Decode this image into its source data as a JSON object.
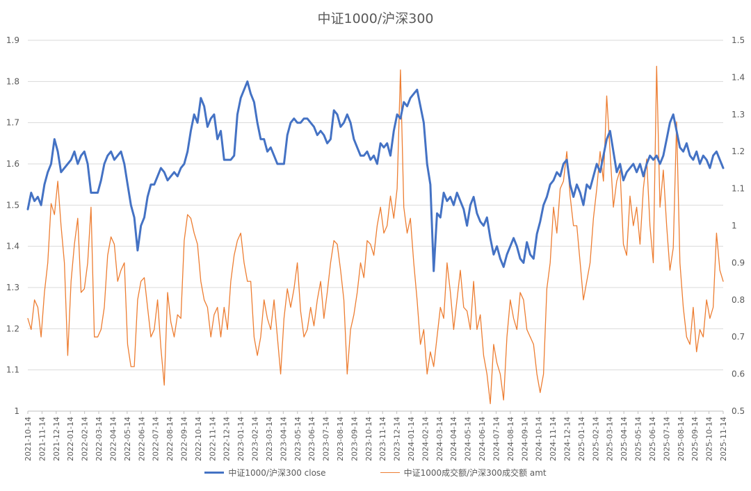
{
  "chart_data": {
    "type": "line",
    "title": "中证1000/沪深300",
    "x_ticks": [
      "2021-10-14",
      "2021-11-14",
      "2021-12-14",
      "2022-01-14",
      "2022-02-14",
      "2022-03-14",
      "2022-04-14",
      "2022-05-14",
      "2022-06-14",
      "2022-07-14",
      "2022-08-14",
      "2022-09-14",
      "2022-10-14",
      "2022-11-14",
      "2022-12-14",
      "2023-01-14",
      "2023-02-14",
      "2023-03-14",
      "2023-04-14",
      "2023-05-14",
      "2023-06-14",
      "2023-07-14",
      "2023-08-14",
      "2023-09-14",
      "2023-10-14",
      "2023-11-14",
      "2023-12-14",
      "2024-01-14",
      "2024-02-14",
      "2024-03-14",
      "2024-04-14",
      "2024-05-14",
      "2024-06-14",
      "2024-07-14",
      "2024-08-14",
      "2024-09-14",
      "2024-10-14",
      "2024-11-14",
      "2024-12-14",
      "2025-01-14",
      "2025-02-14",
      "2025-03-14",
      "2025-04-14",
      "2025-05-14",
      "2025-06-14",
      "2025-07-14",
      "2025-08-14",
      "2025-09-14",
      "2025-10-14",
      "2025-11-14"
    ],
    "y_left": {
      "min": 1.0,
      "max": 1.9,
      "step": 0.1,
      "ticks": [
        "1",
        "1.1",
        "1.2",
        "1.3",
        "1.4",
        "1.5",
        "1.6",
        "1.7",
        "1.8",
        "1.9"
      ]
    },
    "y_right": {
      "min": 0.5,
      "max": 1.5,
      "step": 0.1,
      "ticks": [
        "0.5",
        "0.6",
        "0.7",
        "0.8",
        "0.9",
        "1",
        "1.1",
        "1.2",
        "1.3",
        "1.4",
        "1.5"
      ]
    },
    "grid": true,
    "legend_position": "bottom",
    "series": [
      {
        "name": "中证1000/沪深300 close",
        "axis": "left",
        "color": "#4472C4",
        "values": [
          1.49,
          1.53,
          1.51,
          1.52,
          1.5,
          1.55,
          1.58,
          1.6,
          1.66,
          1.63,
          1.58,
          1.59,
          1.6,
          1.61,
          1.63,
          1.6,
          1.62,
          1.63,
          1.6,
          1.53,
          1.53,
          1.53,
          1.56,
          1.6,
          1.62,
          1.63,
          1.61,
          1.62,
          1.63,
          1.6,
          1.55,
          1.5,
          1.47,
          1.39,
          1.45,
          1.47,
          1.52,
          1.55,
          1.55,
          1.57,
          1.59,
          1.58,
          1.56,
          1.57,
          1.58,
          1.57,
          1.59,
          1.6,
          1.63,
          1.68,
          1.72,
          1.7,
          1.76,
          1.74,
          1.69,
          1.71,
          1.72,
          1.66,
          1.68,
          1.61,
          1.61,
          1.61,
          1.62,
          1.72,
          1.76,
          1.78,
          1.8,
          1.77,
          1.75,
          1.7,
          1.66,
          1.66,
          1.63,
          1.64,
          1.62,
          1.6,
          1.6,
          1.6,
          1.67,
          1.7,
          1.71,
          1.7,
          1.7,
          1.71,
          1.71,
          1.7,
          1.69,
          1.67,
          1.68,
          1.67,
          1.65,
          1.66,
          1.73,
          1.72,
          1.69,
          1.7,
          1.72,
          1.7,
          1.66,
          1.64,
          1.62,
          1.62,
          1.63,
          1.61,
          1.62,
          1.6,
          1.65,
          1.64,
          1.65,
          1.62,
          1.68,
          1.72,
          1.71,
          1.75,
          1.74,
          1.76,
          1.77,
          1.78,
          1.74,
          1.7,
          1.6,
          1.55,
          1.34,
          1.48,
          1.47,
          1.53,
          1.51,
          1.52,
          1.5,
          1.53,
          1.51,
          1.49,
          1.45,
          1.5,
          1.52,
          1.48,
          1.46,
          1.45,
          1.47,
          1.42,
          1.38,
          1.4,
          1.37,
          1.35,
          1.38,
          1.4,
          1.42,
          1.4,
          1.37,
          1.36,
          1.41,
          1.38,
          1.37,
          1.43,
          1.46,
          1.5,
          1.52,
          1.55,
          1.56,
          1.58,
          1.57,
          1.6,
          1.61,
          1.55,
          1.52,
          1.55,
          1.53,
          1.5,
          1.55,
          1.54,
          1.57,
          1.6,
          1.58,
          1.62,
          1.66,
          1.68,
          1.63,
          1.58,
          1.6,
          1.56,
          1.58,
          1.59,
          1.6,
          1.58,
          1.6,
          1.57,
          1.6,
          1.62,
          1.61,
          1.62,
          1.6,
          1.62,
          1.66,
          1.7,
          1.72,
          1.68,
          1.64,
          1.63,
          1.65,
          1.62,
          1.61,
          1.63,
          1.6,
          1.62,
          1.61,
          1.59,
          1.62,
          1.63,
          1.61,
          1.59
        ]
      },
      {
        "name": "中证1000成交额/沪深300成交额 amt",
        "axis": "right",
        "color": "#ED7D31",
        "values": [
          0.75,
          0.72,
          0.8,
          0.78,
          0.7,
          0.82,
          0.9,
          1.06,
          1.03,
          1.12,
          1.0,
          0.9,
          0.65,
          0.85,
          0.95,
          1.02,
          0.82,
          0.83,
          0.9,
          1.05,
          0.7,
          0.7,
          0.72,
          0.78,
          0.92,
          0.97,
          0.95,
          0.85,
          0.88,
          0.9,
          0.68,
          0.62,
          0.62,
          0.8,
          0.85,
          0.86,
          0.78,
          0.7,
          0.72,
          0.8,
          0.67,
          0.57,
          0.82,
          0.74,
          0.7,
          0.76,
          0.75,
          0.96,
          1.03,
          1.02,
          0.98,
          0.95,
          0.85,
          0.8,
          0.78,
          0.7,
          0.76,
          0.78,
          0.7,
          0.78,
          0.72,
          0.85,
          0.92,
          0.96,
          0.98,
          0.9,
          0.85,
          0.85,
          0.7,
          0.65,
          0.7,
          0.8,
          0.75,
          0.72,
          0.8,
          0.7,
          0.6,
          0.75,
          0.83,
          0.78,
          0.83,
          0.9,
          0.77,
          0.7,
          0.72,
          0.78,
          0.73,
          0.8,
          0.85,
          0.75,
          0.82,
          0.9,
          0.96,
          0.95,
          0.88,
          0.8,
          0.6,
          0.72,
          0.76,
          0.82,
          0.9,
          0.86,
          0.96,
          0.95,
          0.92,
          1.0,
          1.05,
          0.98,
          1.0,
          1.08,
          1.02,
          1.1,
          1.42,
          1.05,
          0.98,
          1.02,
          0.9,
          0.8,
          0.68,
          0.72,
          0.6,
          0.66,
          0.62,
          0.7,
          0.78,
          0.75,
          0.9,
          0.82,
          0.72,
          0.8,
          0.88,
          0.78,
          0.77,
          0.72,
          0.85,
          0.72,
          0.76,
          0.65,
          0.6,
          0.52,
          0.68,
          0.63,
          0.6,
          0.53,
          0.7,
          0.8,
          0.75,
          0.72,
          0.82,
          0.8,
          0.72,
          0.7,
          0.68,
          0.6,
          0.55,
          0.6,
          0.83,
          0.9,
          1.05,
          0.98,
          1.1,
          1.12,
          1.2,
          1.08,
          1.0,
          1.0,
          0.9,
          0.8,
          0.85,
          0.9,
          1.02,
          1.1,
          1.2,
          1.12,
          1.35,
          1.2,
          1.05,
          1.12,
          1.15,
          0.95,
          0.92,
          1.08,
          1.0,
          1.05,
          0.95,
          1.1,
          1.18,
          1.0,
          0.9,
          1.43,
          1.05,
          1.15,
          1.0,
          0.88,
          0.94,
          1.28,
          0.9,
          0.78,
          0.7,
          0.68,
          0.78,
          0.66,
          0.72,
          0.7,
          0.8,
          0.75,
          0.78,
          0.98,
          0.88,
          0.85
        ]
      }
    ]
  }
}
